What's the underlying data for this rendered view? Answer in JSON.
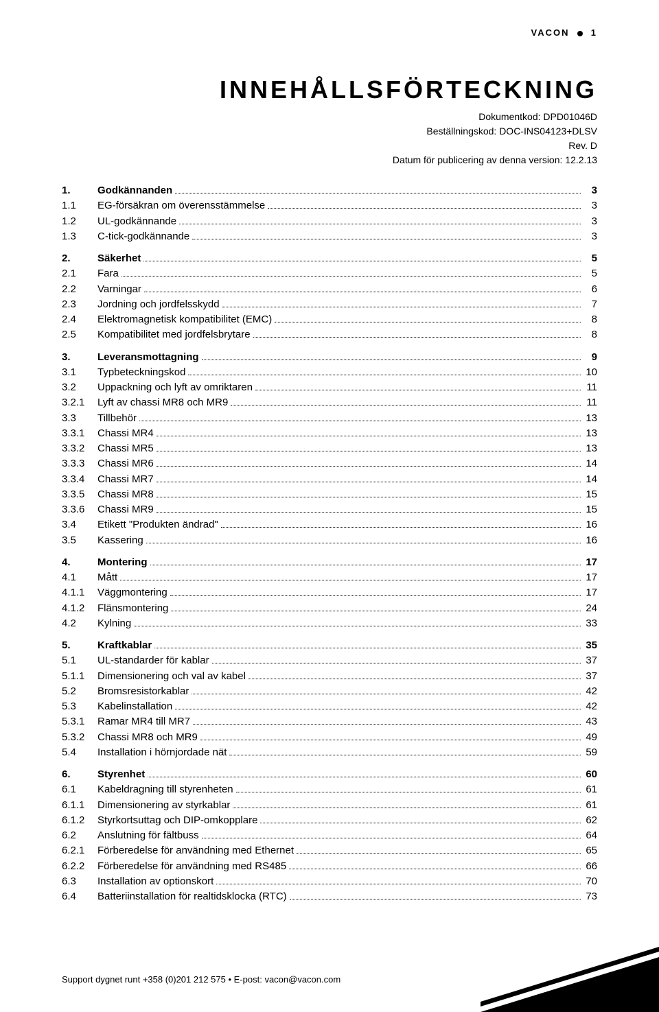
{
  "header": {
    "brand": "VACON",
    "page": "1"
  },
  "title": "INNEHÅLLSFÖRTECKNING",
  "meta": {
    "docCode": "Dokumentkod: DPD01046D",
    "orderCode": "Beställningskod: DOC-INS04123+DLSV",
    "rev": "Rev. D",
    "date": "Datum för publicering av denna version: 12.2.13"
  },
  "toc": [
    {
      "num": "1.",
      "label": "Godkännanden",
      "page": "3",
      "section": true
    },
    {
      "num": "1.1",
      "label": "EG-försäkran om överensstämmelse",
      "page": "3"
    },
    {
      "num": "1.2",
      "label": "UL-godkännande",
      "page": "3"
    },
    {
      "num": "1.3",
      "label": "C-tick-godkännande",
      "page": "3"
    },
    {
      "num": "2.",
      "label": "Säkerhet",
      "page": "5",
      "section": true
    },
    {
      "num": "2.1",
      "label": "Fara",
      "page": "5"
    },
    {
      "num": "2.2",
      "label": "Varningar",
      "page": "6"
    },
    {
      "num": "2.3",
      "label": "Jordning och jordfelsskydd",
      "page": "7"
    },
    {
      "num": "2.4",
      "label": "Elektromagnetisk kompatibilitet (EMC)",
      "page": "8"
    },
    {
      "num": "2.5",
      "label": "Kompatibilitet med jordfelsbrytare",
      "page": "8"
    },
    {
      "num": "3.",
      "label": "Leveransmottagning",
      "page": "9",
      "section": true
    },
    {
      "num": "3.1",
      "label": "Typbeteckningskod",
      "page": "10"
    },
    {
      "num": "3.2",
      "label": "Uppackning och lyft av omriktaren",
      "page": "11"
    },
    {
      "num": "3.2.1",
      "label": "Lyft av chassi MR8 och MR9",
      "page": "11"
    },
    {
      "num": "3.3",
      "label": "Tillbehör",
      "page": "13"
    },
    {
      "num": "3.3.1",
      "label": "Chassi MR4",
      "page": "13"
    },
    {
      "num": "3.3.2",
      "label": "Chassi MR5",
      "page": "13"
    },
    {
      "num": "3.3.3",
      "label": "Chassi MR6",
      "page": "14"
    },
    {
      "num": "3.3.4",
      "label": "Chassi MR7",
      "page": "14"
    },
    {
      "num": "3.3.5",
      "label": "Chassi MR8",
      "page": "15"
    },
    {
      "num": "3.3.6",
      "label": "Chassi MR9",
      "page": "15"
    },
    {
      "num": "3.4",
      "label": "Etikett \"Produkten ändrad\"",
      "page": "16"
    },
    {
      "num": "3.5",
      "label": "Kassering",
      "page": "16"
    },
    {
      "num": "4.",
      "label": "Montering",
      "page": "17",
      "section": true
    },
    {
      "num": "4.1",
      "label": "Mått",
      "page": "17"
    },
    {
      "num": "4.1.1",
      "label": "Väggmontering",
      "page": "17"
    },
    {
      "num": "4.1.2",
      "label": "Flänsmontering",
      "page": "24"
    },
    {
      "num": "4.2",
      "label": "Kylning",
      "page": "33"
    },
    {
      "num": "5.",
      "label": "Kraftkablar",
      "page": "35",
      "section": true
    },
    {
      "num": "5.1",
      "label": "UL-standarder för kablar",
      "page": "37"
    },
    {
      "num": "5.1.1",
      "label": "Dimensionering och val av kabel",
      "page": "37"
    },
    {
      "num": "5.2",
      "label": "Bromsresistorkablar",
      "page": "42"
    },
    {
      "num": "5.3",
      "label": "Kabelinstallation",
      "page": "42"
    },
    {
      "num": "5.3.1",
      "label": "Ramar MR4 till MR7",
      "page": "43"
    },
    {
      "num": "5.3.2",
      "label": "Chassi MR8 och MR9",
      "page": "49"
    },
    {
      "num": "5.4",
      "label": "Installation i hörnjordade nät",
      "page": "59"
    },
    {
      "num": "6.",
      "label": "Styrenhet",
      "page": "60",
      "section": true
    },
    {
      "num": "6.1",
      "label": "Kabeldragning till styrenheten",
      "page": "61"
    },
    {
      "num": "6.1.1",
      "label": "Dimensionering av styrkablar",
      "page": "61"
    },
    {
      "num": "6.1.2",
      "label": "Styrkortsuttag och DIP-omkopplare",
      "page": "62"
    },
    {
      "num": "6.2",
      "label": "Anslutning för fältbuss",
      "page": "64"
    },
    {
      "num": "6.2.1",
      "label": "Förberedelse för användning med Ethernet",
      "page": "65"
    },
    {
      "num": "6.2.2",
      "label": "Förberedelse för användning med RS485",
      "page": "66"
    },
    {
      "num": "6.3",
      "label": "Installation av optionskort",
      "page": "70"
    },
    {
      "num": "6.4",
      "label": "Batteriinstallation för realtidsklocka (RTC)",
      "page": "73"
    }
  ],
  "footer": {
    "text": "Support dygnet runt +358 (0)201 212 575 • E-post: vacon@vacon.com"
  },
  "colors": {
    "text": "#000000",
    "bg": "#ffffff"
  }
}
